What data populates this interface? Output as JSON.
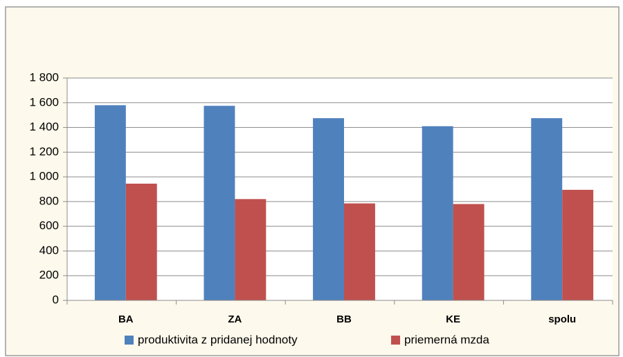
{
  "chart_data": {
    "type": "bar",
    "categories": [
      "BA",
      "ZA",
      "BB",
      "KE",
      "spolu"
    ],
    "series": [
      {
        "name": "produktivita z pridanej hodnoty",
        "color": "#4f81bd",
        "values": [
          1580,
          1575,
          1475,
          1410,
          1475
        ]
      },
      {
        "name": "priemerná mzda",
        "color": "#c0504d",
        "values": [
          945,
          820,
          785,
          780,
          895
        ]
      }
    ],
    "ylim": [
      0,
      1800
    ],
    "yticks": [
      0,
      200,
      400,
      600,
      800,
      {
        "value": 1000,
        "label": "1 000"
      },
      {
        "value": 1200,
        "label": "1 200"
      },
      {
        "value": 1400,
        "label": "1 400"
      },
      {
        "value": 1600,
        "label": "1 600"
      },
      {
        "value": 1800,
        "label": "1 800"
      }
    ],
    "grid": true,
    "legend": "bottom"
  }
}
